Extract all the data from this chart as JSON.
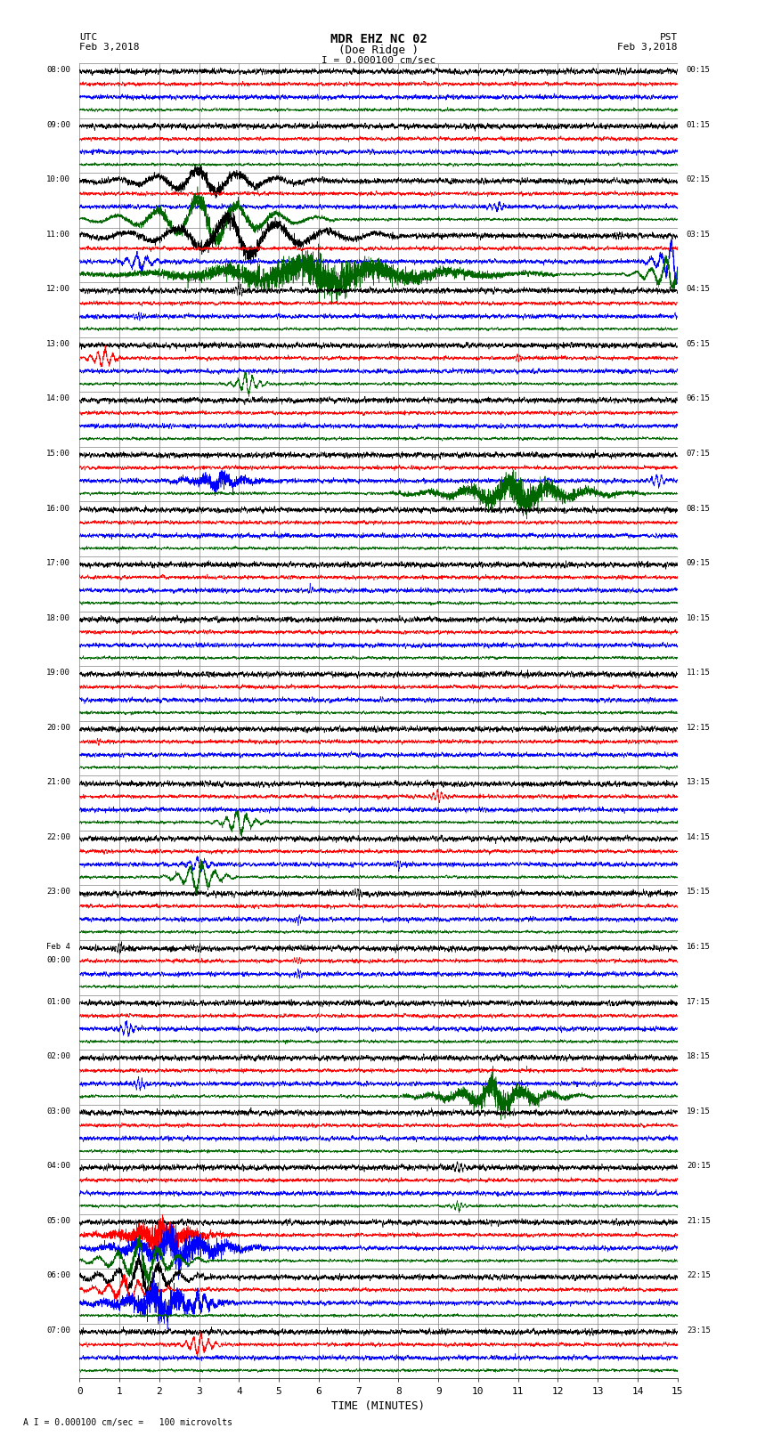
{
  "title_line1": "MDR EHZ NC 02",
  "title_line2": "(Doe Ridge )",
  "scale_label": "I = 0.000100 cm/sec",
  "utc_label": "UTC\nFeb 3,2018",
  "pst_label": "PST\nFeb 3,2018",
  "xlabel": "TIME (MINUTES)",
  "footer": "A I = 0.000100 cm/sec =   100 microvolts",
  "bg_color": "#ffffff",
  "trace_colors": [
    "#000000",
    "#ff0000",
    "#0000ff",
    "#006600"
  ],
  "left_labels_utc": [
    "08:00",
    "09:00",
    "10:00",
    "11:00",
    "12:00",
    "13:00",
    "14:00",
    "15:00",
    "16:00",
    "17:00",
    "18:00",
    "19:00",
    "20:00",
    "21:00",
    "22:00",
    "23:00",
    "Feb 4\n00:00",
    "01:00",
    "02:00",
    "03:00",
    "04:00",
    "05:00",
    "06:00",
    "07:00"
  ],
  "right_labels_pst": [
    "00:15",
    "01:15",
    "02:15",
    "03:15",
    "04:15",
    "05:15",
    "06:15",
    "07:15",
    "08:15",
    "09:15",
    "10:15",
    "11:15",
    "12:15",
    "13:15",
    "14:15",
    "15:15",
    "16:15",
    "17:15",
    "18:15",
    "19:15",
    "20:15",
    "21:15",
    "22:15",
    "23:15"
  ],
  "num_rows": 24,
  "xmin": 0,
  "xmax": 15,
  "seed": 12345
}
